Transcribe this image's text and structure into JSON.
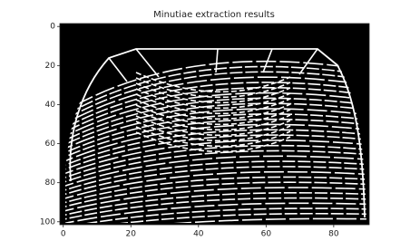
{
  "chart_data": {
    "type": "image",
    "title": "Minutiae extraction results",
    "xlim": [
      -1,
      90.5
    ],
    "xticks": [
      0,
      20,
      40,
      60,
      80
    ],
    "ylim": [
      101.5,
      -1.5
    ],
    "yticks": [
      0,
      20,
      40,
      60,
      80,
      100
    ]
  }
}
